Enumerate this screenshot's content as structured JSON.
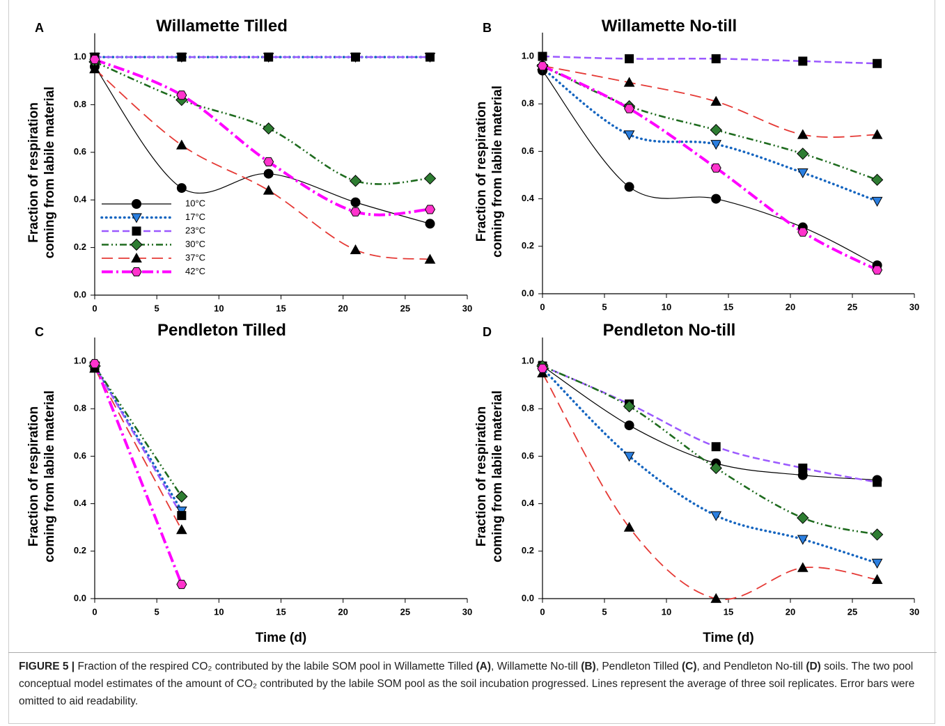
{
  "chart_data": [
    {
      "type": "line",
      "panel": "A",
      "title": "Willamette Tilled",
      "ylabel": [
        "Fraction of respiration",
        "coming from labile material"
      ],
      "x": [
        0,
        7,
        14,
        21,
        27
      ],
      "xlim": [
        0,
        30
      ],
      "xticks": [
        0,
        5,
        10,
        15,
        20,
        25,
        30
      ],
      "ylim": [
        0,
        1.1
      ],
      "yticks": [
        {
          "value": 0,
          "label": "0.0"
        },
        {
          "value": 0.2,
          "label": "0.2"
        },
        {
          "value": 0.4,
          "label": "0.4"
        },
        {
          "value": 0.6,
          "label": "0.6"
        },
        {
          "value": 0.8,
          "label": "0.8"
        },
        {
          "value": 1,
          "label": "1.0"
        }
      ],
      "legend": "lower left",
      "series": [
        {
          "name": "10°C",
          "color": "#000000",
          "marker": "circle",
          "marker_color": "#000000",
          "line_style": "solid",
          "values": [
            0.96,
            0.45,
            0.51,
            0.39,
            0.3
          ]
        },
        {
          "name": "17°C",
          "color": "#1565c0",
          "marker": "triangle-down",
          "marker_color": "#2b7fe0",
          "line_style": "dotted",
          "values": [
            1.0,
            1.0,
            1.0,
            1.0,
            1.0
          ]
        },
        {
          "name": "23°C",
          "color": "#9b59ff",
          "marker": "square",
          "marker_color": "#000000",
          "line_style": "dashed",
          "values": [
            1.0,
            1.0,
            1.0,
            1.0,
            1.0
          ]
        },
        {
          "name": "30°C",
          "color": "#1e6b1e",
          "marker": "diamond",
          "marker_color": "#2e7d32",
          "line_style": "dash-dot-dot",
          "values": [
            0.98,
            0.82,
            0.7,
            0.48,
            0.49
          ]
        },
        {
          "name": "37°C",
          "color": "#e53935",
          "marker": "triangle-up",
          "marker_color": "#000000",
          "line_style": "long-dash",
          "values": [
            0.95,
            0.63,
            0.44,
            0.19,
            0.15
          ]
        },
        {
          "name": "42°C",
          "color": "#ff00ff",
          "marker": "hexagon",
          "marker_color": "#ff33cc",
          "line_style": "dash-dot",
          "values": [
            0.99,
            0.84,
            0.56,
            0.35,
            0.36
          ]
        }
      ]
    },
    {
      "type": "line",
      "panel": "B",
      "title": "Willamette No-till",
      "ylabel": [
        "Fraction of respiration",
        "coming from labile material"
      ],
      "x": [
        0,
        7,
        14,
        21,
        27
      ],
      "xlim": [
        0,
        30
      ],
      "xticks": [
        0,
        5,
        10,
        15,
        20,
        25,
        30
      ],
      "ylim": [
        0,
        1.1
      ],
      "yticks": [
        {
          "value": 0,
          "label": "0.0"
        },
        {
          "value": 0.2,
          "label": "0.2"
        },
        {
          "value": 0.4,
          "label": "0.4"
        },
        {
          "value": 0.6,
          "label": "0.6"
        },
        {
          "value": 0.8,
          "label": "0.8"
        },
        {
          "value": 1,
          "label": "1.0"
        }
      ],
      "series": [
        {
          "color": "#000000",
          "marker": "circle",
          "marker_color": "#000000",
          "line_style": "solid",
          "values": [
            0.94,
            0.45,
            0.4,
            0.28,
            0.12
          ]
        },
        {
          "color": "#1565c0",
          "marker": "triangle-down",
          "marker_color": "#2b7fe0",
          "line_style": "dotted",
          "values": [
            0.95,
            0.67,
            0.63,
            0.51,
            0.39
          ]
        },
        {
          "color": "#9b59ff",
          "marker": "square",
          "marker_color": "#000000",
          "line_style": "dashed",
          "values": [
            1.0,
            0.99,
            0.99,
            0.98,
            0.97
          ]
        },
        {
          "color": "#1e6b1e",
          "marker": "diamond",
          "marker_color": "#2e7d32",
          "line_style": "dash-dot-dot",
          "values": [
            0.96,
            0.79,
            0.69,
            0.59,
            0.48
          ]
        },
        {
          "color": "#e53935",
          "marker": "triangle-up",
          "marker_color": "#000000",
          "line_style": "long-dash",
          "values": [
            0.96,
            0.89,
            0.81,
            0.67,
            0.67
          ]
        },
        {
          "color": "#ff00ff",
          "marker": "hexagon",
          "marker_color": "#ff33cc",
          "line_style": "dash-dot",
          "values": [
            0.96,
            0.78,
            0.53,
            0.26,
            0.1
          ]
        }
      ]
    },
    {
      "type": "line",
      "panel": "C",
      "title": "Pendleton Tilled",
      "ylabel": [
        "Fraction of respiration",
        "coming from labile material"
      ],
      "xlabel": "Time (d)",
      "x": [
        0,
        7,
        14,
        21,
        27
      ],
      "xlim": [
        0,
        30
      ],
      "xticks": [
        0,
        5,
        10,
        15,
        20,
        25,
        30
      ],
      "ylim": [
        0,
        1.1
      ],
      "yticks": [
        {
          "value": 0,
          "label": "0.0"
        },
        {
          "value": 0.2,
          "label": "0.2"
        },
        {
          "value": 0.4,
          "label": "0.4"
        },
        {
          "value": 0.6,
          "label": "0.6"
        },
        {
          "value": 0.8,
          "label": "0.8"
        },
        {
          "value": 1,
          "label": "1.0"
        }
      ],
      "series": [
        {
          "color": "#000000",
          "marker": "circle",
          "marker_color": "#000000",
          "line_style": "solid",
          "values": [
            0.98,
            null,
            null,
            null,
            null
          ]
        },
        {
          "color": "#1565c0",
          "marker": "triangle-down",
          "marker_color": "#2b7fe0",
          "line_style": "dotted",
          "values": [
            0.98,
            0.37,
            null,
            null,
            null
          ]
        },
        {
          "color": "#9b59ff",
          "marker": "square",
          "marker_color": "#000000",
          "line_style": "dashed",
          "values": [
            0.98,
            0.35,
            null,
            null,
            null
          ]
        },
        {
          "color": "#1e6b1e",
          "marker": "diamond",
          "marker_color": "#2e7d32",
          "line_style": "dash-dot-dot",
          "values": [
            0.98,
            0.43,
            null,
            null,
            null
          ]
        },
        {
          "color": "#e53935",
          "marker": "triangle-up",
          "marker_color": "#000000",
          "line_style": "long-dash",
          "values": [
            0.97,
            0.29,
            null,
            null,
            null
          ]
        },
        {
          "color": "#ff00ff",
          "marker": "hexagon",
          "marker_color": "#ff33cc",
          "line_style": "dash-dot",
          "values": [
            0.99,
            0.06,
            null,
            null,
            null
          ]
        }
      ]
    },
    {
      "type": "line",
      "panel": "D",
      "title": "Pendleton No-till",
      "ylabel": [
        "Fraction of respiration",
        "coming from labile material"
      ],
      "xlabel": "Time (d)",
      "x": [
        0,
        7,
        14,
        21,
        27
      ],
      "xlim": [
        0,
        30
      ],
      "xticks": [
        0,
        5,
        10,
        15,
        20,
        25,
        30
      ],
      "ylim": [
        0,
        1.1
      ],
      "yticks": [
        {
          "value": 0,
          "label": "0.0"
        },
        {
          "value": 0.2,
          "label": "0.2"
        },
        {
          "value": 0.4,
          "label": "0.4"
        },
        {
          "value": 0.6,
          "label": "0.6"
        },
        {
          "value": 0.8,
          "label": "0.8"
        },
        {
          "value": 1,
          "label": "1.0"
        }
      ],
      "series": [
        {
          "color": "#000000",
          "marker": "circle",
          "marker_color": "#000000",
          "line_style": "solid",
          "values": [
            0.98,
            0.73,
            0.57,
            0.52,
            0.5
          ]
        },
        {
          "color": "#1565c0",
          "marker": "triangle-down",
          "marker_color": "#2b7fe0",
          "line_style": "dotted",
          "values": [
            0.97,
            0.6,
            0.35,
            0.25,
            0.15
          ]
        },
        {
          "color": "#9b59ff",
          "marker": "square",
          "marker_color": "#000000",
          "line_style": "dashed",
          "values": [
            0.98,
            0.82,
            0.64,
            0.55,
            0.49
          ]
        },
        {
          "color": "#1e6b1e",
          "marker": "diamond",
          "marker_color": "#2e7d32",
          "line_style": "dash-dot-dot",
          "values": [
            0.98,
            0.81,
            0.55,
            0.34,
            0.27
          ]
        },
        {
          "color": "#e53935",
          "marker": "triangle-up",
          "marker_color": "#000000",
          "line_style": "long-dash",
          "values": [
            0.95,
            0.3,
            0.0,
            0.13,
            0.08
          ]
        },
        {
          "color": "#ff00ff",
          "marker": "hexagon",
          "marker_color": "#ff33cc",
          "line_style": "dash-dot",
          "values": [
            0.97,
            null,
            null,
            null,
            null
          ]
        }
      ]
    }
  ],
  "caption": {
    "label": "FIGURE 5 |",
    "parts": [
      " Fraction of the respired CO₂ contributed by the labile SOM pool in Willamette Tilled ",
      "(A)",
      ", Willamette No-till ",
      "(B)",
      ", Pendleton Tilled ",
      "(C)",
      ", and Pendleton No-till ",
      "(D)",
      " soils. The two pool conceptual model estimates of the amount of CO₂ contributed by the labile SOM pool as the soil incubation progressed. Lines represent the average of three soil replicates. Error bars were omitted to aid readability."
    ]
  }
}
